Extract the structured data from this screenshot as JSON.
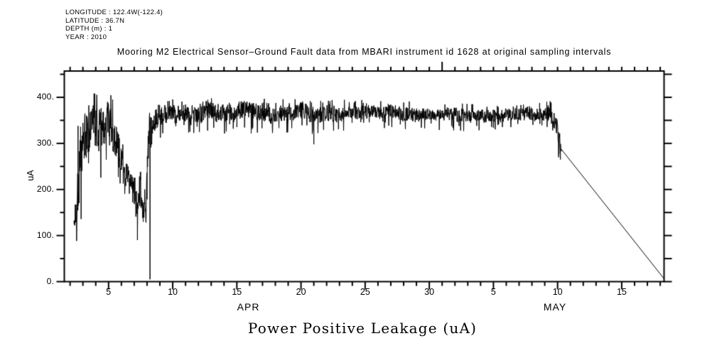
{
  "page": {
    "background": "#ffffff",
    "foreground": "#000000"
  },
  "metadata_block": {
    "lines": [
      "LONGITUDE : 122.4W(-122.4)",
      "LATITUDE : 36.7N",
      "DEPTH (m) : 1",
      "YEAR : 2010"
    ]
  },
  "chart_data": {
    "type": "line",
    "title": "Mooring M2 Electrical Sensor–Ground Fault data from MBARI instrument id 1628 at original sampling intervals",
    "xlabel": "Power Positive Leakage (uA)",
    "ylabel": "uA",
    "grid": false,
    "legend": "none",
    "x_axis": {
      "unit": "day-of-month",
      "months": [
        "APR",
        "MAY"
      ],
      "domain_days": [
        1.55,
        48.3
      ],
      "day_tick_range": {
        "from": 2,
        "to": 48,
        "step": 1
      },
      "major_tick_days": [
        5,
        10,
        15,
        20,
        25,
        30,
        35,
        40,
        45
      ],
      "tick_labels": [
        {
          "day": 5,
          "text": "5"
        },
        {
          "day": 10,
          "text": "10"
        },
        {
          "day": 15,
          "text": "15"
        },
        {
          "day": 20,
          "text": "20"
        },
        {
          "day": 25,
          "text": "25"
        },
        {
          "day": 30,
          "text": "30"
        },
        {
          "day": 35,
          "text": "5"
        },
        {
          "day": 40,
          "text": "10"
        },
        {
          "day": 45,
          "text": "15"
        }
      ],
      "month_labels": [
        {
          "day": 15.9,
          "text": "APR"
        },
        {
          "day": 39.8,
          "text": "MAY"
        }
      ],
      "month_boundary_day": 31
    },
    "y_axis": {
      "domain": [
        0,
        457
      ],
      "major_ticks": [
        0,
        100,
        200,
        300,
        400
      ],
      "minor_ticks": [
        50,
        150,
        250,
        350,
        450
      ],
      "right_tick_values": [
        0,
        50,
        100,
        150,
        200,
        250,
        300,
        350,
        400,
        450
      ],
      "tick_labels": [
        {
          "value": 400,
          "text": "400."
        },
        {
          "value": 300,
          "text": "300."
        },
        {
          "value": 200,
          "text": "200."
        },
        {
          "value": 100,
          "text": "100."
        },
        {
          "value": 0,
          "text": "0."
        }
      ]
    },
    "series": [
      {
        "name": "Power Positive Leakage",
        "units": "uA",
        "color": "#000000",
        "noise_seed": 1337,
        "envelope_points_day_mean_amp": [
          [
            2.3,
            125,
            15
          ],
          [
            2.45,
            150,
            45
          ],
          [
            2.7,
            240,
            90
          ],
          [
            3.0,
            310,
            80
          ],
          [
            3.4,
            330,
            65
          ],
          [
            3.8,
            345,
            60
          ],
          [
            4.2,
            330,
            65
          ],
          [
            4.6,
            350,
            50
          ],
          [
            5.0,
            355,
            45
          ],
          [
            5.3,
            335,
            55
          ],
          [
            5.6,
            310,
            50
          ],
          [
            6.0,
            260,
            40
          ],
          [
            6.4,
            230,
            35
          ],
          [
            6.7,
            215,
            40
          ],
          [
            7.0,
            180,
            45
          ],
          [
            7.25,
            165,
            45
          ],
          [
            7.5,
            200,
            55
          ],
          [
            7.7,
            145,
            35
          ],
          [
            7.9,
            150,
            45
          ],
          [
            8.08,
            290,
            60
          ],
          [
            8.2,
            335,
            45
          ],
          [
            8.35,
            335,
            35
          ],
          [
            8.6,
            350,
            28
          ],
          [
            9.0,
            357,
            26
          ],
          [
            9.5,
            362,
            24
          ],
          [
            10,
            365,
            24
          ],
          [
            11,
            369,
            26
          ],
          [
            12,
            367,
            26
          ],
          [
            13,
            371,
            26
          ],
          [
            14,
            369,
            25
          ],
          [
            15,
            372,
            25
          ],
          [
            16,
            370,
            24
          ],
          [
            17,
            367,
            24
          ],
          [
            18,
            366,
            23
          ],
          [
            19,
            368,
            22
          ],
          [
            20,
            369,
            22
          ],
          [
            21,
            361,
            23
          ],
          [
            22,
            365,
            21
          ],
          [
            23,
            367,
            21
          ],
          [
            24,
            369,
            20
          ],
          [
            25,
            368,
            20
          ],
          [
            26,
            370,
            19
          ],
          [
            27,
            368,
            19
          ],
          [
            28,
            366,
            19
          ],
          [
            29,
            365,
            19
          ],
          [
            30,
            364,
            18
          ],
          [
            31,
            363,
            18
          ],
          [
            32,
            362,
            18
          ],
          [
            33,
            363,
            18
          ],
          [
            34,
            362,
            17
          ],
          [
            35,
            360,
            17
          ],
          [
            36,
            361,
            17
          ],
          [
            37,
            362,
            17
          ],
          [
            38,
            364,
            18
          ],
          [
            39,
            366,
            20
          ],
          [
            39.6,
            362,
            22
          ],
          [
            39.95,
            345,
            30
          ],
          [
            40.15,
            305,
            25
          ],
          [
            40.3,
            288,
            12
          ]
        ],
        "spike_events_day_value": [
          [
            2.62,
            338
          ],
          [
            8.23,
            5
          ],
          [
            21.0,
            298
          ],
          [
            40.08,
            270
          ],
          [
            40.22,
            265
          ]
        ],
        "tail_line_day_value": [
          [
            40.3,
            287
          ],
          [
            48.28,
            7
          ]
        ]
      }
    ]
  }
}
